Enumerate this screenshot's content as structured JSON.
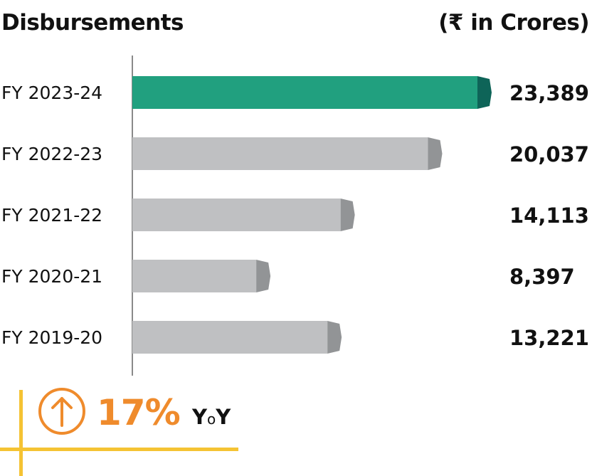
{
  "chart_data": {
    "type": "bar",
    "orientation": "horizontal",
    "title": "Disbursements",
    "unit_label": "(₹ in Crores)",
    "categories": [
      "FY 2023-24",
      "FY 2022-23",
      "FY 2021-22",
      "FY 2020-21",
      "FY 2019-20"
    ],
    "values": [
      23389,
      20037,
      14113,
      8397,
      13221
    ],
    "value_labels": [
      "23,389",
      "20,037",
      "14,113",
      "8,397",
      "13,221"
    ],
    "highlight_index": 0,
    "colors": {
      "highlight": "#21a07f",
      "highlight_end": "#0e6458",
      "default": "#bfc0c2",
      "default_end": "#929496",
      "axis": "#8a8a8a"
    },
    "xlim": [
      0,
      23389
    ],
    "grid": false,
    "legend": "none"
  },
  "yoy": {
    "value": "17%",
    "label_prefix": "Y",
    "label_mid": "o",
    "label_suffix": "Y",
    "icon": "arrow-up-circle-icon",
    "accent_color": "#ef8b2c",
    "frame_color": "#f5c333"
  }
}
